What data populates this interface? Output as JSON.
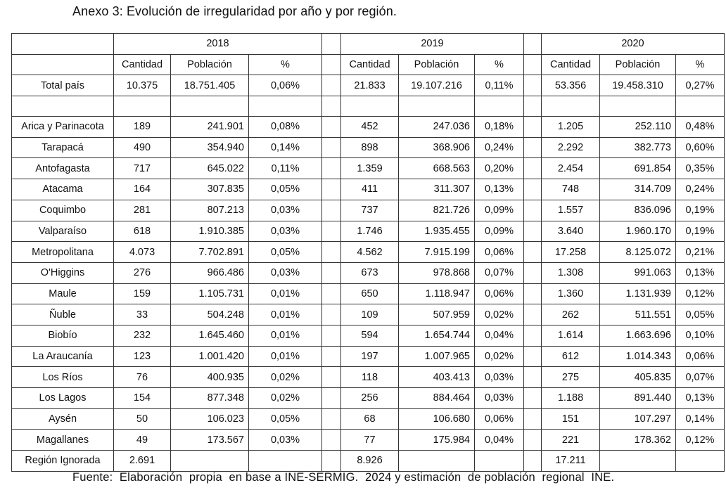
{
  "title": "Anexo 3: Evolución de irregularidad por año y por región.",
  "footer": "Fuente:  Elaboración  propia  en base a INE-SERMIG.  2024 y estimación  de población  regional  INE.",
  "years": [
    "2018",
    "2019",
    "2020"
  ],
  "subheaders": [
    "Cantidad",
    "Población",
    "%"
  ],
  "total": {
    "label": "Total país",
    "y2018": [
      "10.375",
      "18.751.405",
      "0,06%"
    ],
    "y2019": [
      "21.833",
      "19.107.216",
      "0,11%"
    ],
    "y2020": [
      "53.356",
      "19.458.310",
      "0,27%"
    ]
  },
  "regions": [
    {
      "name": "Arica y Parinacota",
      "y2018": [
        "189",
        "241.901",
        "0,08%"
      ],
      "y2019": [
        "452",
        "247.036",
        "0,18%"
      ],
      "y2020": [
        "1.205",
        "252.110",
        "0,48%"
      ]
    },
    {
      "name": "Tarapacá",
      "y2018": [
        "490",
        "354.940",
        "0,14%"
      ],
      "y2019": [
        "898",
        "368.906",
        "0,24%"
      ],
      "y2020": [
        "2.292",
        "382.773",
        "0,60%"
      ]
    },
    {
      "name": "Antofagasta",
      "y2018": [
        "717",
        "645.022",
        "0,11%"
      ],
      "y2019": [
        "1.359",
        "668.563",
        "0,20%"
      ],
      "y2020": [
        "2.454",
        "691.854",
        "0,35%"
      ]
    },
    {
      "name": "Atacama",
      "y2018": [
        "164",
        "307.835",
        "0,05%"
      ],
      "y2019": [
        "411",
        "311.307",
        "0,13%"
      ],
      "y2020": [
        "748",
        "314.709",
        "0,24%"
      ]
    },
    {
      "name": "Coquimbo",
      "y2018": [
        "281",
        "807.213",
        "0,03%"
      ],
      "y2019": [
        "737",
        "821.726",
        "0,09%"
      ],
      "y2020": [
        "1.557",
        "836.096",
        "0,19%"
      ]
    },
    {
      "name": "Valparaíso",
      "y2018": [
        "618",
        "1.910.385",
        "0,03%"
      ],
      "y2019": [
        "1.746",
        "1.935.455",
        "0,09%"
      ],
      "y2020": [
        "3.640",
        "1.960.170",
        "0,19%"
      ]
    },
    {
      "name": "Metropolitana",
      "y2018": [
        "4.073",
        "7.702.891",
        "0,05%"
      ],
      "y2019": [
        "4.562",
        "7.915.199",
        "0,06%"
      ],
      "y2020": [
        "17.258",
        "8.125.072",
        "0,21%"
      ]
    },
    {
      "name": "O'Higgins",
      "y2018": [
        "276",
        "966.486",
        "0,03%"
      ],
      "y2019": [
        "673",
        "978.868",
        "0,07%"
      ],
      "y2020": [
        "1.308",
        "991.063",
        "0,13%"
      ]
    },
    {
      "name": "Maule",
      "y2018": [
        "159",
        "1.105.731",
        "0,01%"
      ],
      "y2019": [
        "650",
        "1.118.947",
        "0,06%"
      ],
      "y2020": [
        "1.360",
        "1.131.939",
        "0,12%"
      ]
    },
    {
      "name": "Ñuble",
      "y2018": [
        "33",
        "504.248",
        "0,01%"
      ],
      "y2019": [
        "109",
        "507.959",
        "0,02%"
      ],
      "y2020": [
        "262",
        "511.551",
        "0,05%"
      ]
    },
    {
      "name": "Biobío",
      "y2018": [
        "232",
        "1.645.460",
        "0,01%"
      ],
      "y2019": [
        "594",
        "1.654.744",
        "0,04%"
      ],
      "y2020": [
        "1.614",
        "1.663.696",
        "0,10%"
      ]
    },
    {
      "name": "La Araucanía",
      "y2018": [
        "123",
        "1.001.420",
        "0,01%"
      ],
      "y2019": [
        "197",
        "1.007.965",
        "0,02%"
      ],
      "y2020": [
        "612",
        "1.014.343",
        "0,06%"
      ]
    },
    {
      "name": "Los Ríos",
      "y2018": [
        "76",
        "400.935",
        "0,02%"
      ],
      "y2019": [
        "118",
        "403.413",
        "0,03%"
      ],
      "y2020": [
        "275",
        "405.835",
        "0,07%"
      ]
    },
    {
      "name": "Los Lagos",
      "y2018": [
        "154",
        "877.348",
        "0,02%"
      ],
      "y2019": [
        "256",
        "884.464",
        "0,03%"
      ],
      "y2020": [
        "1.188",
        "891.440",
        "0,13%"
      ]
    },
    {
      "name": "Aysén",
      "y2018": [
        "50",
        "106.023",
        "0,05%"
      ],
      "y2019": [
        "68",
        "106.680",
        "0,06%"
      ],
      "y2020": [
        "151",
        "107.297",
        "0,14%"
      ]
    },
    {
      "name": "Magallanes",
      "y2018": [
        "49",
        "173.567",
        "0,03%"
      ],
      "y2019": [
        "77",
        "175.984",
        "0,04%"
      ],
      "y2020": [
        "221",
        "178.362",
        "0,12%"
      ]
    }
  ],
  "ignorada": {
    "label": "Región Ignorada",
    "y2018": "2.691",
    "y2019": "8.926",
    "y2020": "17.211"
  }
}
